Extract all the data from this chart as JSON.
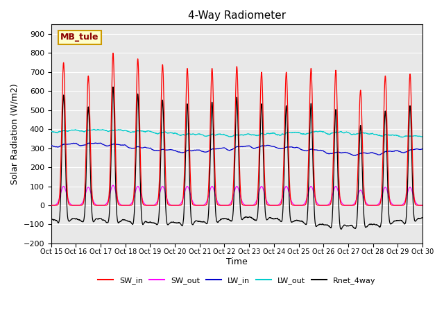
{
  "title": "4-Way Radiometer",
  "xlabel": "Time",
  "ylabel": "Solar Radiation (W/m2)",
  "ylim": [
    -200,
    950
  ],
  "yticks": [
    -200,
    -100,
    0,
    100,
    200,
    300,
    400,
    500,
    600,
    700,
    800,
    900
  ],
  "x_labels": [
    "Oct 15",
    "Oct 16",
    "Oct 17",
    "Oct 18",
    "Oct 19",
    "Oct 20",
    "Oct 21",
    "Oct 22",
    "Oct 23",
    "Oct 24",
    "Oct 25",
    "Oct 26",
    "Oct 27",
    "Oct 28",
    "Oct 29",
    "Oct 30"
  ],
  "annotation_text": "MB_tule",
  "annotation_bg": "#ffffcc",
  "annotation_border": "#cc9900",
  "colors": {
    "SW_in": "#ff0000",
    "SW_out": "#ff00ff",
    "LW_in": "#0000cc",
    "LW_out": "#00cccc",
    "Rnet_4way": "#000000"
  },
  "background_color": "#e8e8e8",
  "grid_color": "#ffffff",
  "n_days": 15,
  "points_per_day": 144,
  "sw_in_peaks": [
    750,
    680,
    800,
    770,
    740,
    720,
    720,
    730,
    700,
    700,
    720,
    710,
    605,
    680,
    690
  ],
  "sw_out_peaks": [
    100,
    95,
    105,
    100,
    100,
    100,
    100,
    100,
    100,
    100,
    100,
    100,
    80,
    95,
    95
  ],
  "lw_in_base": 315,
  "lw_out_base": 390
}
